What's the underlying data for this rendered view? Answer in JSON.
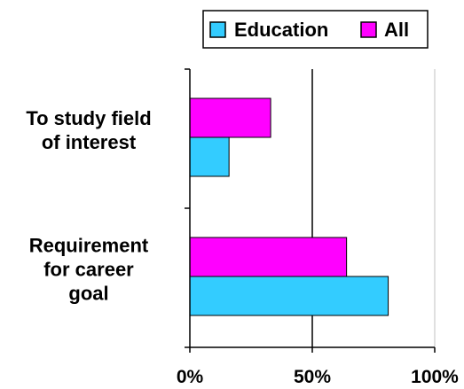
{
  "chart_data": {
    "type": "bar",
    "orientation": "horizontal",
    "categories": [
      "To study field of interest",
      "Requirement for career goal"
    ],
    "category_lines": [
      [
        "To study field",
        "of interest"
      ],
      [
        "Requirement",
        "for career",
        "goal"
      ]
    ],
    "series": [
      {
        "name": "Education",
        "values": [
          16,
          81
        ],
        "color": "#33ccff"
      },
      {
        "name": "All",
        "values": [
          33,
          64
        ],
        "color": "#ff00ff"
      }
    ],
    "xlim": [
      0,
      100
    ],
    "x_ticks": [
      {
        "value": 0,
        "label": "0%"
      },
      {
        "value": 50,
        "label": "50%"
      },
      {
        "value": 100,
        "label": "100%"
      }
    ],
    "gridlines": true,
    "legend_position": "top-right"
  }
}
